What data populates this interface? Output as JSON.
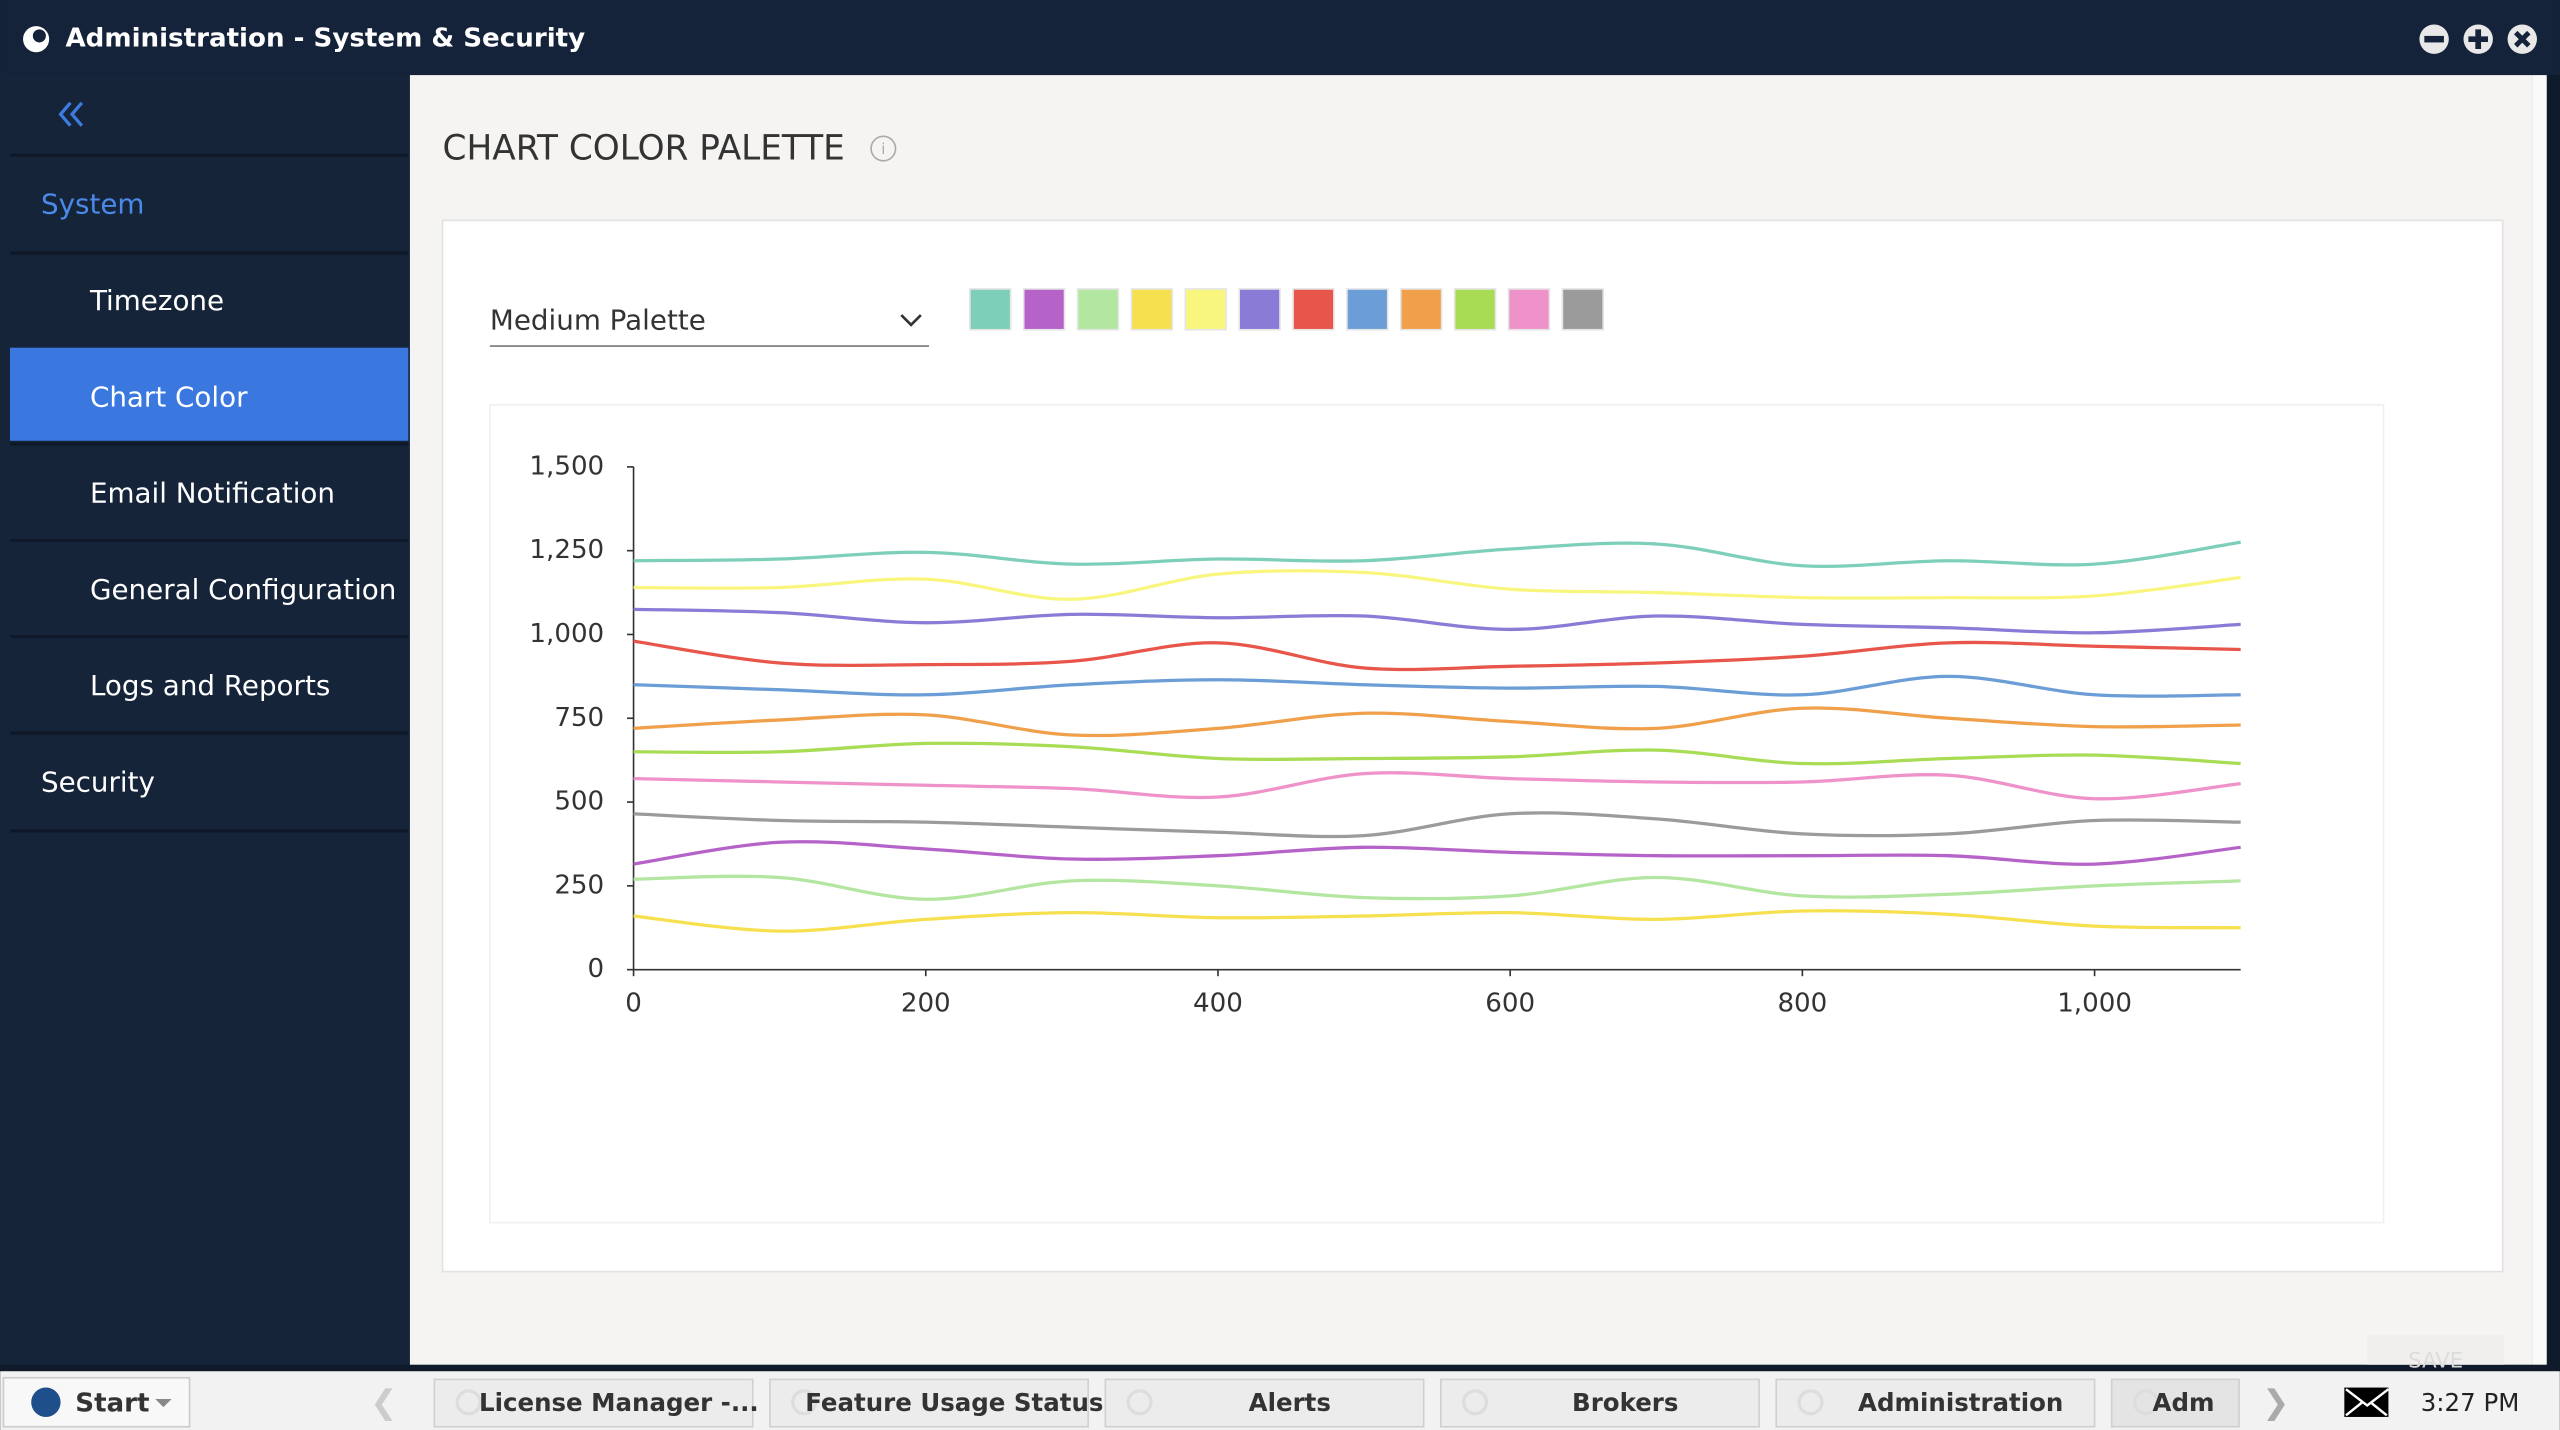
{
  "window": {
    "title": "Administration - System & Security"
  },
  "sidebar": {
    "items": [
      {
        "label": "System",
        "level": 0
      },
      {
        "label": "Timezone",
        "level": 1
      },
      {
        "label": "Chart Color",
        "level": 1,
        "selected": true
      },
      {
        "label": "Email Notification",
        "level": 1
      },
      {
        "label": "General Configuration",
        "level": 1
      },
      {
        "label": "Logs and Reports",
        "level": 1
      },
      {
        "label": "Security",
        "level": 0
      }
    ]
  },
  "header": {
    "title": "CHART COLOR PALETTE"
  },
  "palette": {
    "selected": "Medium Palette",
    "colors": [
      "#7dcfba",
      "#b563c9",
      "#b3e6a0",
      "#f7e04f",
      "#f8f67f",
      "#8a7cd6",
      "#e8554a",
      "#6b9dd6",
      "#f0a04a",
      "#a9dc55",
      "#ee92c9",
      "#9b9b9b"
    ]
  },
  "save_button": "SAVE",
  "chart_data": {
    "type": "line",
    "x": [
      0,
      100,
      200,
      300,
      400,
      500,
      600,
      700,
      800,
      900,
      1000,
      1100
    ],
    "xlim": [
      0,
      1100
    ],
    "ylim": [
      0,
      1500
    ],
    "xticks": [
      0,
      200,
      400,
      600,
      800,
      {
        "value": 1000,
        "label": "1,000"
      }
    ],
    "yticks": [
      0,
      250,
      500,
      750,
      {
        "value": 1000,
        "label": "1,000"
      },
      {
        "value": 1250,
        "label": "1,250"
      },
      {
        "value": 1500,
        "label": "1,500"
      }
    ],
    "series": [
      {
        "color": "#7dcfba",
        "values": [
          1220,
          1225,
          1245,
          1210,
          1225,
          1220,
          1255,
          1270,
          1205,
          1220,
          1210,
          1275
        ]
      },
      {
        "color": "#f8f67f",
        "values": [
          1140,
          1140,
          1165,
          1105,
          1180,
          1185,
          1135,
          1125,
          1110,
          1110,
          1115,
          1170
        ]
      },
      {
        "color": "#8a7cd6",
        "values": [
          1075,
          1065,
          1035,
          1060,
          1050,
          1055,
          1015,
          1055,
          1030,
          1020,
          1005,
          1030
        ]
      },
      {
        "color": "#e8554a",
        "values": [
          980,
          915,
          910,
          920,
          975,
          900,
          905,
          915,
          935,
          975,
          965,
          955
        ]
      },
      {
        "color": "#6b9dd6",
        "values": [
          850,
          835,
          820,
          850,
          865,
          850,
          840,
          845,
          820,
          875,
          820,
          820
        ]
      },
      {
        "color": "#f0a04a",
        "values": [
          720,
          745,
          760,
          700,
          720,
          765,
          740,
          720,
          780,
          750,
          725,
          730
        ]
      },
      {
        "color": "#a9dc55",
        "values": [
          650,
          650,
          675,
          665,
          630,
          630,
          635,
          655,
          615,
          630,
          640,
          615
        ]
      },
      {
        "color": "#ee92c9",
        "values": [
          570,
          560,
          550,
          540,
          515,
          585,
          570,
          560,
          560,
          580,
          510,
          555
        ]
      },
      {
        "color": "#9b9b9b",
        "values": [
          465,
          445,
          440,
          425,
          410,
          400,
          465,
          450,
          405,
          405,
          445,
          440
        ]
      },
      {
        "color": "#b563c9",
        "values": [
          315,
          380,
          360,
          330,
          340,
          365,
          350,
          340,
          340,
          340,
          315,
          365
        ]
      },
      {
        "color": "#b3e6a0",
        "values": [
          270,
          275,
          210,
          265,
          250,
          215,
          220,
          275,
          220,
          225,
          250,
          265
        ]
      },
      {
        "color": "#f7e04f",
        "values": [
          160,
          115,
          150,
          170,
          155,
          160,
          170,
          150,
          175,
          165,
          130,
          125
        ]
      }
    ]
  },
  "taskbar": {
    "start": "Start",
    "tasks": [
      "License Manager -...",
      "Feature Usage Status",
      "Alerts",
      "Brokers",
      "Administration",
      "Adm"
    ],
    "time": "3:27 PM"
  }
}
